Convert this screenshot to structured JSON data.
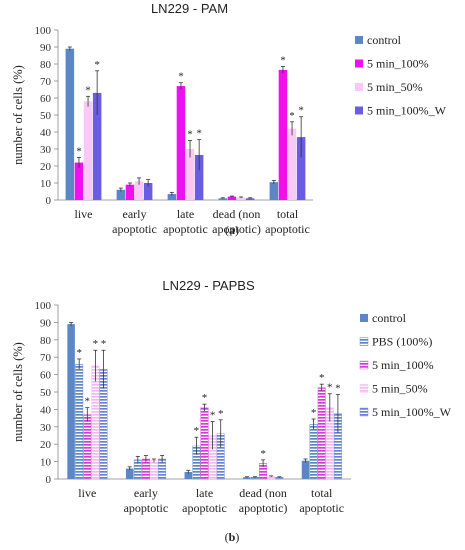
{
  "chart_data": [
    {
      "type": "bar",
      "title": "LN229 - PAM",
      "caption": "(a)",
      "ylabel": "number of cells (%)",
      "xlabel": "",
      "ylim": [
        0,
        100
      ],
      "yticks": [
        0,
        10,
        20,
        30,
        40,
        50,
        60,
        70,
        80,
        90,
        100
      ],
      "grid": false,
      "legend_position": "right",
      "categories": [
        [
          "live"
        ],
        [
          "early",
          "apoptotic"
        ],
        [
          "late",
          "apoptotic"
        ],
        [
          "dead (non",
          "apoptotic)"
        ],
        [
          "total",
          "apoptotic"
        ]
      ],
      "series": [
        {
          "name": "control",
          "color": "#5b87c6",
          "pattern": "solid",
          "values": [
            89,
            6,
            3.5,
            1,
            10.5
          ],
          "errors": [
            1,
            1,
            1,
            0.3,
            1
          ],
          "significant": [
            false,
            false,
            false,
            false,
            false
          ]
        },
        {
          "name": "5 min_100%",
          "color": "#ee11ee",
          "pattern": "solid",
          "values": [
            22,
            9,
            67,
            2,
            76.5
          ],
          "errors": [
            3,
            1,
            2,
            0.3,
            2
          ],
          "significant": [
            true,
            false,
            true,
            false,
            true
          ]
        },
        {
          "name": "5 min_50%",
          "color": "#f8c8f6",
          "pattern": "solid",
          "values": [
            58,
            11,
            30,
            1.5,
            42
          ],
          "errors": [
            3,
            2,
            5,
            0.3,
            4
          ],
          "significant": [
            true,
            false,
            true,
            false,
            true
          ]
        },
        {
          "name": "5 min_100%_W",
          "color": "#6a5de2",
          "pattern": "solid",
          "values": [
            63,
            10,
            26.5,
            1,
            37
          ],
          "errors": [
            13,
            2,
            9,
            0.3,
            12
          ],
          "significant": [
            true,
            false,
            true,
            false,
            true
          ]
        }
      ]
    },
    {
      "type": "bar",
      "title": "LN229 - PAPBS",
      "caption": "(b)",
      "ylabel": "number of cells (%)",
      "xlabel": "",
      "ylim": [
        0,
        100
      ],
      "yticks": [
        0,
        10,
        20,
        30,
        40,
        50,
        60,
        70,
        80,
        90,
        100
      ],
      "grid": false,
      "legend_position": "right",
      "categories": [
        [
          "live"
        ],
        [
          "early",
          "apoptotic"
        ],
        [
          "late",
          "apoptotic"
        ],
        [
          "dead (non",
          "apoptotic)"
        ],
        [
          "total",
          "apoptotic"
        ]
      ],
      "series": [
        {
          "name": "control",
          "color": "#5b87c6",
          "pattern": "solid",
          "values": [
            89,
            6,
            4,
            1,
            10.5
          ],
          "errors": [
            1,
            1,
            1,
            0.3,
            1
          ],
          "significant": [
            false,
            false,
            false,
            false,
            false
          ]
        },
        {
          "name": "PBS (100%)",
          "color": "#5b87c6",
          "pattern": "stripes",
          "values": [
            66,
            11,
            19,
            1,
            31.5
          ],
          "errors": [
            3,
            2,
            5,
            0.3,
            3
          ],
          "significant": [
            true,
            false,
            true,
            false,
            true
          ]
        },
        {
          "name": "5 min_100%",
          "color": "#d23fd8",
          "pattern": "stripes",
          "values": [
            37,
            11.5,
            41,
            9,
            52.5
          ],
          "errors": [
            4,
            2,
            2,
            2,
            2
          ],
          "significant": [
            true,
            false,
            true,
            true,
            true
          ]
        },
        {
          "name": "5 min_50%",
          "color": "#f3b8ef",
          "pattern": "stripes",
          "values": [
            65,
            10.5,
            25,
            1.5,
            41
          ],
          "errors": [
            9,
            1,
            8,
            0.3,
            8
          ],
          "significant": [
            true,
            false,
            true,
            false,
            true
          ]
        },
        {
          "name": "5 min_100%_W",
          "color": "#6a82d6",
          "pattern": "stripes",
          "values": [
            63,
            11.5,
            26,
            1,
            37.5
          ],
          "errors": [
            11,
            2,
            8,
            0.3,
            11
          ],
          "significant": [
            true,
            false,
            true,
            false,
            true
          ]
        }
      ]
    }
  ]
}
